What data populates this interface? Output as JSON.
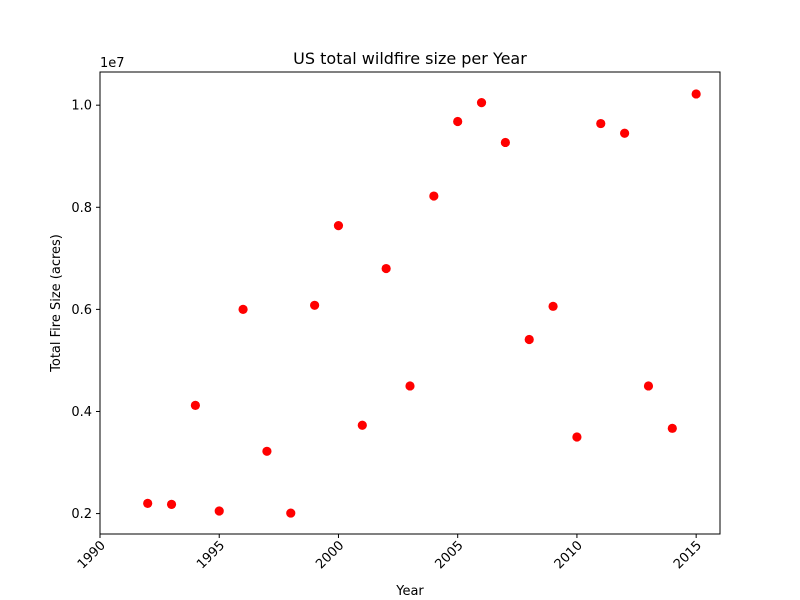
{
  "chart_data": {
    "type": "scatter",
    "title": "US total wildfire size per Year",
    "xlabel": "Year",
    "ylabel": "Total Fire Size (acres)",
    "y_scale_label": "1e7",
    "xlim": [
      1990,
      2016
    ],
    "ylim": [
      1.6,
      10.65
    ],
    "x_ticks": [
      1990,
      1995,
      2000,
      2005,
      2010,
      2015
    ],
    "y_ticks": [
      0.2,
      0.4,
      0.6,
      0.8,
      1.0
    ],
    "y_tick_labels": [
      "0.2",
      "0.4",
      "0.6",
      "0.8",
      "1.0"
    ],
    "grid": false,
    "legend": "none",
    "marker_color": "#ff0000",
    "x": [
      1992,
      1993,
      1994,
      1995,
      1996,
      1997,
      1998,
      1999,
      2000,
      2001,
      2002,
      2003,
      2004,
      2005,
      2006,
      2007,
      2008,
      2009,
      2010,
      2011,
      2012,
      2013,
      2014,
      2015
    ],
    "y": [
      2.2,
      2.18,
      4.12,
      2.05,
      6.0,
      3.22,
      2.01,
      6.08,
      7.64,
      3.73,
      6.8,
      4.5,
      8.22,
      9.68,
      10.05,
      9.27,
      5.41,
      6.06,
      3.5,
      9.64,
      9.45,
      4.5,
      3.67,
      10.22
    ]
  }
}
